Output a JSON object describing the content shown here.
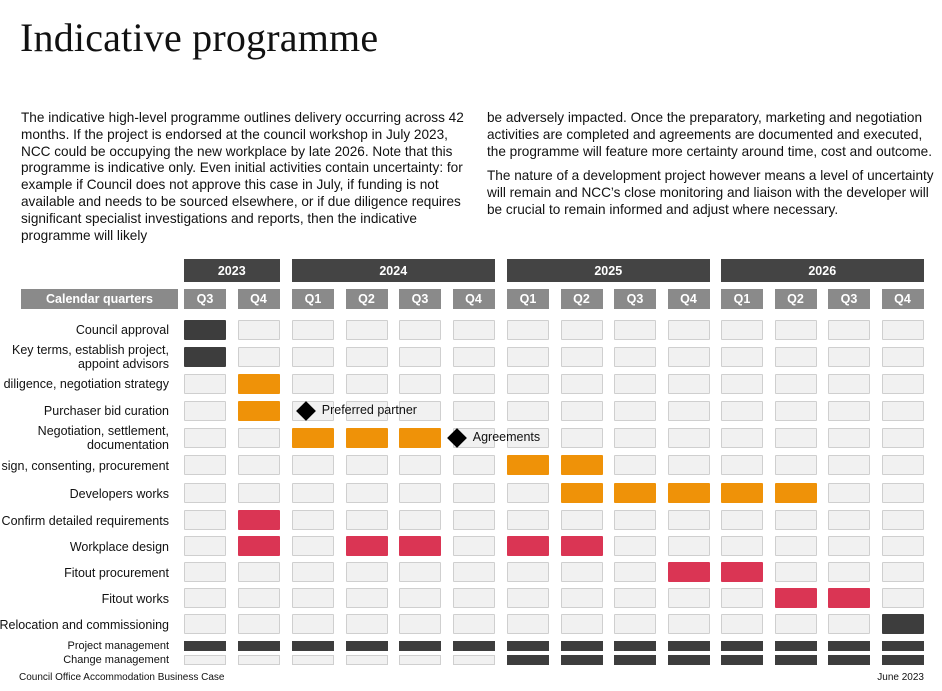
{
  "page": {
    "title": "Indicative programme",
    "intro_left": "The indicative high-level programme outlines delivery occurring across 42 months. If the project is endorsed at the council workshop in July 2023, NCC could be occupying the new workplace by late 2026. Note that this programme is indicative only. Even initial activities contain uncertainty: for example if Council does not approve this case in July, if funding is not available and needs to be sourced elsewhere, or if due diligence requires significant specialist investigations and reports, then the indicative programme will likely",
    "intro_right_1": "be adversely impacted. Once the preparatory, marketing and negotiation activities are completed and agreements are documented and executed, the programme will feature more certainty around time, cost and outcome.",
    "intro_right_2": "The nature of a development project however means a level of uncertainty will remain and NCC’s close monitoring and liaison with the developer will be crucial to remain informed and adjust where necessary.",
    "footer_left": "Council Office Accommodation Business Case",
    "footer_right": "June 2023"
  },
  "colors": {
    "dark": "#3d3d3d",
    "orange": "#ef9208",
    "red": "#da3554",
    "empty": "#f1f1f1",
    "header": "#444444",
    "quarter_header": "#8a8a8a"
  },
  "chart_data": {
    "type": "table",
    "years": [
      {
        "label": "2023",
        "quarters": [
          "Q3",
          "Q4"
        ]
      },
      {
        "label": "2024",
        "quarters": [
          "Q1",
          "Q2",
          "Q3",
          "Q4"
        ]
      },
      {
        "label": "2025",
        "quarters": [
          "Q1",
          "Q2",
          "Q3",
          "Q4"
        ]
      },
      {
        "label": "2026",
        "quarters": [
          "Q1",
          "Q2",
          "Q3",
          "Q4"
        ]
      }
    ],
    "row_header": "Calendar quarters",
    "rows": [
      {
        "label": "Council approval",
        "cells": [
          "dark",
          "",
          "",
          "",
          "",
          "",
          "",
          "",
          "",
          "",
          "",
          "",
          "",
          ""
        ]
      },
      {
        "label": "Key terms, establish project, appoint advisors",
        "cells": [
          "dark",
          "",
          "",
          "",
          "",
          "",
          "",
          "",
          "",
          "",
          "",
          "",
          "",
          ""
        ]
      },
      {
        "label": "diligence, negotiation strategy",
        "cells": [
          "",
          "orange",
          "",
          "",
          "",
          "",
          "",
          "",
          "",
          "",
          "",
          "",
          "",
          ""
        ]
      },
      {
        "label": "Purchaser bid curation",
        "cells": [
          "",
          "orange",
          "",
          "",
          "",
          "",
          "",
          "",
          "",
          "",
          "",
          "",
          "",
          ""
        ]
      },
      {
        "label": "Negotiation, settlement, documentation",
        "cells": [
          "",
          "",
          "orange",
          "orange",
          "orange",
          "",
          "",
          "",
          "",
          "",
          "",
          "",
          "",
          ""
        ]
      },
      {
        "label": "sign, consenting, procurement",
        "cells": [
          "",
          "",
          "",
          "",
          "",
          "",
          "orange",
          "orange",
          "",
          "",
          "",
          "",
          "",
          ""
        ]
      },
      {
        "label": "Developers works",
        "cells": [
          "",
          "",
          "",
          "",
          "",
          "",
          "",
          "orange",
          "orange",
          "orange",
          "orange",
          "orange",
          "",
          ""
        ]
      },
      {
        "label": "Confirm detailed requirements",
        "cells": [
          "",
          "red",
          "",
          "",
          "",
          "",
          "",
          "",
          "",
          "",
          "",
          "",
          "",
          ""
        ]
      },
      {
        "label": "Workplace design",
        "cells": [
          "",
          "red",
          "",
          "red",
          "red",
          "",
          "red",
          "red",
          "",
          "",
          "",
          "",
          "",
          ""
        ]
      },
      {
        "label": "Fitout procurement",
        "cells": [
          "",
          "",
          "",
          "",
          "",
          "",
          "",
          "",
          "",
          "red",
          "red",
          "",
          "",
          ""
        ]
      },
      {
        "label": "Fitout works",
        "cells": [
          "",
          "",
          "",
          "",
          "",
          "",
          "",
          "",
          "",
          "",
          "",
          "red",
          "red",
          ""
        ]
      },
      {
        "label": "Relocation and commissioning",
        "cells": [
          "",
          "",
          "",
          "",
          "",
          "",
          "",
          "",
          "",
          "",
          "",
          "",
          "",
          "dark"
        ]
      },
      {
        "label": "Project management",
        "thin": true,
        "cells": [
          "dark",
          "dark",
          "dark",
          "dark",
          "dark",
          "dark",
          "dark",
          "dark",
          "dark",
          "dark",
          "dark",
          "dark",
          "dark",
          "dark"
        ]
      },
      {
        "label": "Change management",
        "thin": true,
        "cells": [
          "",
          "",
          "",
          "",
          "",
          "",
          "dark",
          "dark",
          "dark",
          "dark",
          "dark",
          "dark",
          "dark",
          "dark"
        ]
      }
    ],
    "milestones": [
      {
        "label": "Preferred partner",
        "row": 3,
        "after_quarter": 1
      },
      {
        "label": "Agreements",
        "row": 4,
        "after_quarter": 4
      }
    ]
  }
}
